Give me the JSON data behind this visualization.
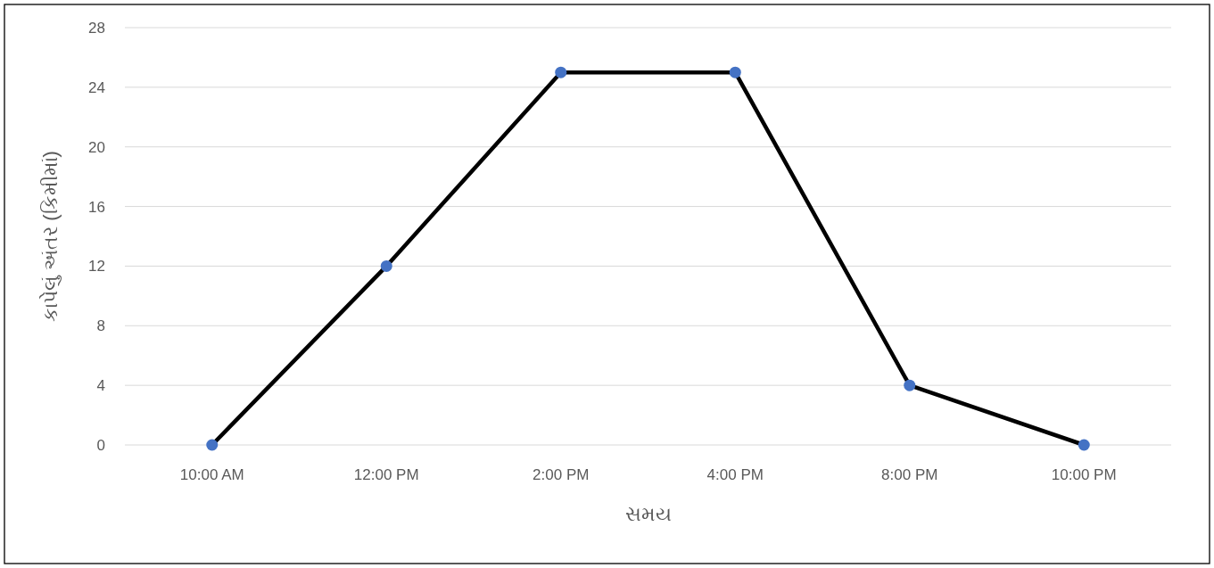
{
  "chart_data": {
    "type": "line",
    "xlabel": "સમય",
    "ylabel": "કાપેલું અંતર (કિમીમાં)",
    "categories": [
      "10:00 AM",
      "12:00 PM",
      "2:00 PM",
      "4:00 PM",
      "8:00 PM",
      "10:00 PM"
    ],
    "series": [
      {
        "color": "#000000",
        "colors": [
          "#4472c4",
          "#4472c4",
          "#4472c4",
          "#4472c4",
          "#4472c4",
          "#4472c4"
        ],
        "values": [
          0,
          12,
          25,
          25,
          4,
          0
        ]
      }
    ],
    "ylim": [
      0,
      28
    ],
    "yticks": [
      0,
      4,
      8,
      12,
      16,
      20,
      24,
      28
    ],
    "grid": "y",
    "marker": "circle",
    "line_style": "solid"
  }
}
